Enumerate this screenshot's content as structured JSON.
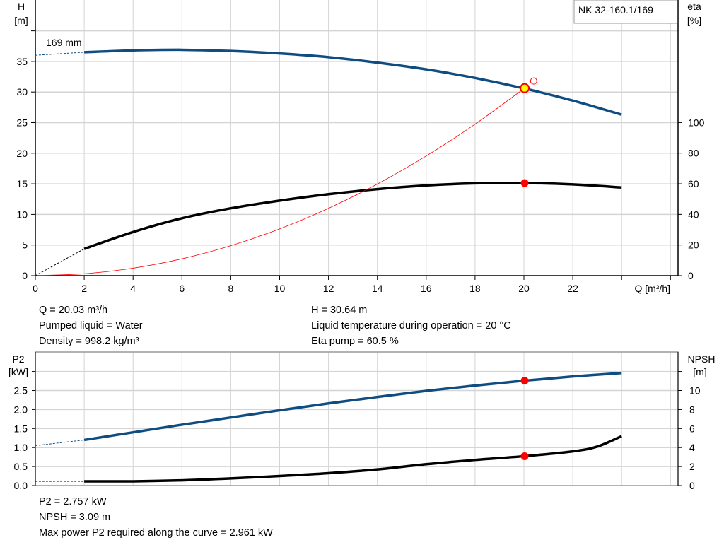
{
  "chart_data": [
    {
      "type": "line",
      "title": "NK 32-160.1/169",
      "xlabel": "Q [m³/h]",
      "ylabel": "H\n[m]",
      "ylabel_left_lines": [
        "H",
        "[m]"
      ],
      "ylabel_right_lines": [
        "eta",
        "[%]"
      ],
      "xlim": [
        0,
        26
      ],
      "ylim_left": [
        0,
        45
      ],
      "ylim_right": [
        0,
        207
      ],
      "x_ticks": [
        0,
        2,
        4,
        6,
        8,
        10,
        12,
        14,
        16,
        18,
        20,
        22
      ],
      "y_ticks_left": [
        0,
        5,
        10,
        15,
        20,
        25,
        30,
        35
      ],
      "y_ticks_right": [
        0,
        20,
        40,
        60,
        80,
        100
      ],
      "grid": true,
      "curve_label": "169 mm",
      "series": [
        {
          "key": "head",
          "axis": "left",
          "color": "#0f4c81",
          "dashed_x": [
            0,
            2
          ],
          "dashed_y": [
            36.0,
            36.5
          ],
          "x": [
            2,
            4,
            6,
            8,
            10,
            12,
            14,
            16,
            18,
            20,
            22,
            24
          ],
          "y": [
            36.5,
            36.8,
            36.9,
            36.7,
            36.3,
            35.7,
            34.8,
            33.7,
            32.3,
            30.6,
            28.6,
            26.3
          ]
        },
        {
          "key": "eta",
          "axis": "right",
          "color": "#000000",
          "dashed_x": [
            0,
            2
          ],
          "dashed_y": [
            0,
            17.5
          ],
          "x": [
            2,
            4,
            6,
            8,
            10,
            12,
            14,
            16,
            18,
            20,
            22,
            24
          ],
          "y": [
            17.5,
            28.5,
            37.5,
            44,
            49,
            53.2,
            56.5,
            58.9,
            60.3,
            60.5,
            59.6,
            57.6
          ]
        },
        {
          "key": "system",
          "axis": "left",
          "color": "#ff0000",
          "type": "system-curve",
          "x": [
            0,
            2,
            4,
            6,
            8,
            10,
            12,
            14,
            16,
            18,
            20.03
          ],
          "y": [
            0,
            0.31,
            1.22,
            2.75,
            4.89,
            7.64,
            11.0,
            14.97,
            19.55,
            24.75,
            30.64
          ]
        }
      ],
      "duty_point": {
        "q": 20.03,
        "h": 30.64,
        "eta": 60.5,
        "color": "#ffff00",
        "border": "#ff0000"
      },
      "requested_point": {
        "q": 20.4,
        "h": 31.8,
        "color": "#ff0000"
      }
    },
    {
      "type": "line",
      "ylabel_left_lines": [
        "P2",
        "[kW]"
      ],
      "ylabel_right_lines": [
        "NPSH",
        "[m]"
      ],
      "xlim": [
        0,
        26
      ],
      "ylim_left": [
        0,
        3.5
      ],
      "ylim_right": [
        0,
        14
      ],
      "y_ticks_left": [
        "0.0",
        "0.5",
        "1.0",
        "1.5",
        "2.0",
        "2.5"
      ],
      "y_ticks_right": [
        0,
        2,
        4,
        6,
        8,
        10
      ],
      "grid": true,
      "series": [
        {
          "key": "p2",
          "axis": "left",
          "color": "#0f4c81",
          "dashed_x": [
            0,
            2
          ],
          "dashed_y": [
            1.05,
            1.2
          ],
          "x": [
            2,
            4,
            6,
            8,
            10,
            12,
            14,
            16,
            18,
            20,
            22,
            24
          ],
          "y": [
            1.2,
            1.4,
            1.6,
            1.79,
            1.98,
            2.16,
            2.33,
            2.49,
            2.63,
            2.757,
            2.87,
            2.96
          ]
        },
        {
          "key": "npsh",
          "axis": "right",
          "color": "#000000",
          "dashed_x": [
            0,
            2
          ],
          "dashed_y": [
            0.45,
            0.45
          ],
          "x": [
            2,
            4,
            6,
            8,
            10,
            12,
            14,
            16,
            18,
            20,
            22,
            23,
            24
          ],
          "y": [
            0.45,
            0.45,
            0.55,
            0.75,
            1.0,
            1.3,
            1.7,
            2.25,
            2.7,
            3.09,
            3.6,
            4.1,
            5.2
          ]
        }
      ],
      "duty_point": {
        "q": 20.03,
        "p2": 2.757,
        "npsh": 3.09,
        "color": "#ff0000"
      }
    }
  ],
  "results_top": {
    "q": "Q = 20.03 m³/h",
    "liquid": "Pumped liquid = Water",
    "density": "Density = 998.2 kg/m³",
    "h": "H = 30.64 m",
    "temp": "Liquid temperature during operation = 20 °C",
    "eta": "Eta pump = 60.5 %"
  },
  "results_bottom": {
    "p2": "P2 = 2.757 kW",
    "npsh": "NPSH = 3.09 m",
    "max_p2": "Max power P2 required along the curve = 2.961 kW"
  }
}
